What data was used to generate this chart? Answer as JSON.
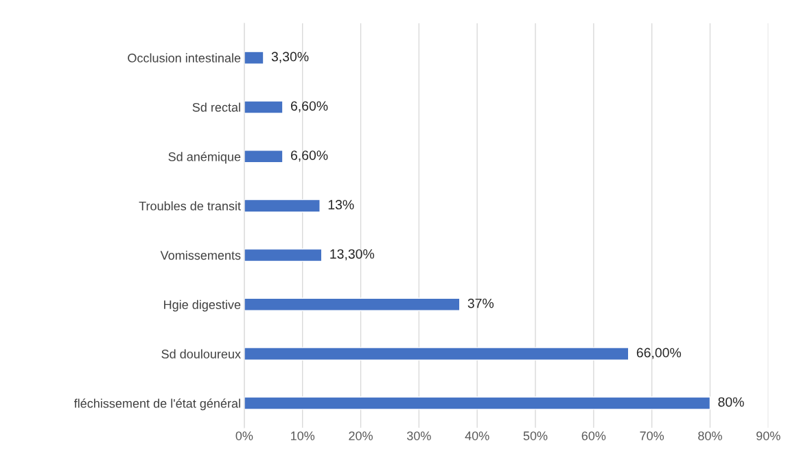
{
  "chart_data": {
    "type": "bar",
    "orientation": "horizontal",
    "categories": [
      "Occlusion intestinale",
      "Sd rectal",
      "Sd anémique",
      "Troubles de transit",
      "Vomissements",
      "Hgie digestive",
      "Sd douloureux",
      "fléchissement de l'état général"
    ],
    "values": [
      3.3,
      6.6,
      6.6,
      13,
      13.3,
      37,
      66,
      80
    ],
    "value_labels": [
      "3,30%",
      "6,60%",
      "6,60%",
      "13%",
      "13,30%",
      "37%",
      "66,00%",
      "80%"
    ],
    "color": "#4472c4",
    "xlim": [
      0,
      90
    ],
    "xticks": [
      {
        "value": 0,
        "label": "0%"
      },
      {
        "value": 10,
        "label": "10%"
      },
      {
        "value": 20,
        "label": "20%"
      },
      {
        "value": 30,
        "label": "30%"
      },
      {
        "value": 40,
        "label": "40%"
      },
      {
        "value": 50,
        "label": "50%"
      },
      {
        "value": 60,
        "label": "60%"
      },
      {
        "value": 70,
        "label": "70%"
      },
      {
        "value": 80,
        "label": "80%"
      },
      {
        "value": 90,
        "label": "90%"
      }
    ],
    "grid": "x"
  }
}
